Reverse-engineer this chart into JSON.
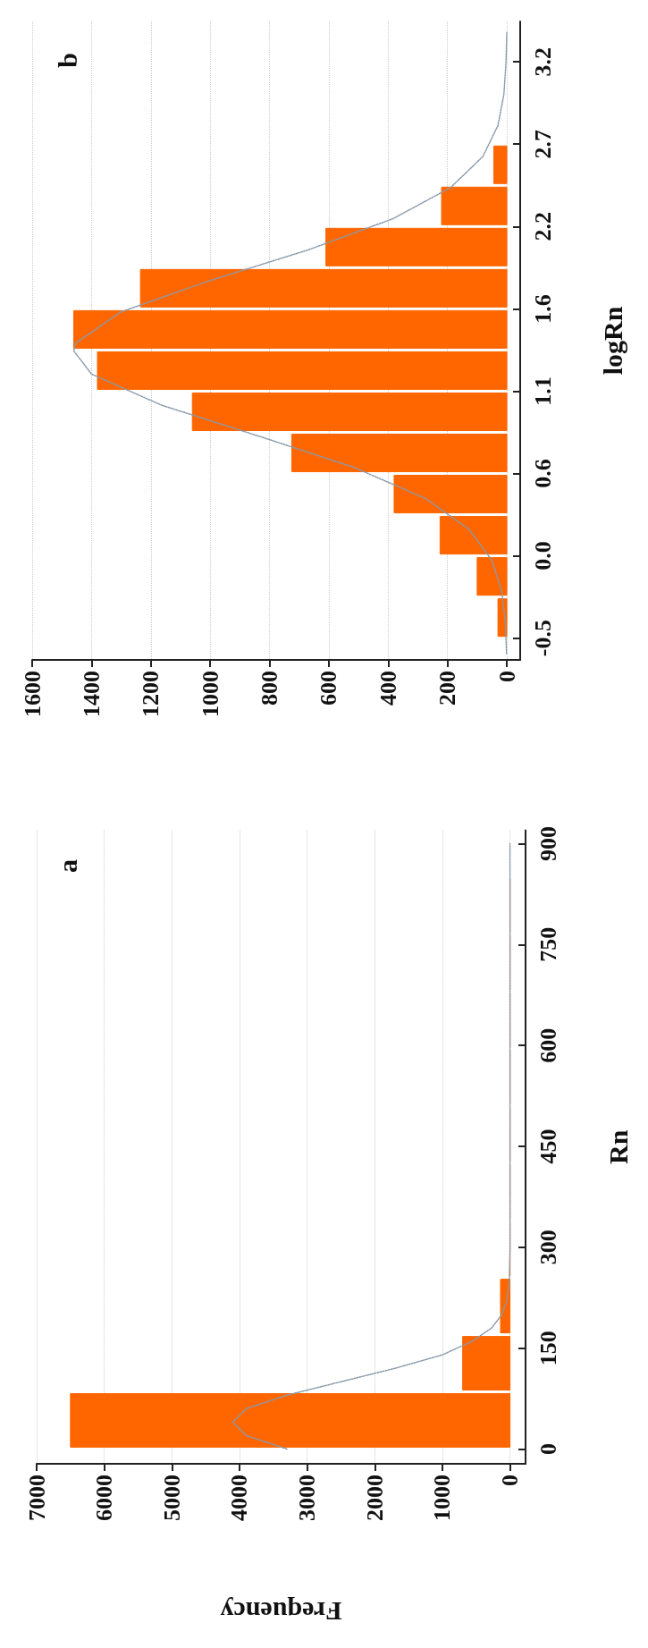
{
  "chart_data": [
    {
      "type": "histogram",
      "orientation": "horizontal",
      "ylabel": "logRn",
      "annotations": [
        "b"
      ],
      "series": [
        {
          "color": "#ff6600",
          "bins": [
            -0.5,
            -0.235,
            0.03,
            0.295,
            0.56,
            0.825,
            1.09,
            1.355,
            1.62,
            1.885,
            2.15,
            2.415,
            2.68
          ],
          "values": [
            30,
            100,
            225,
            380,
            725,
            1060,
            1380,
            1460,
            1235,
            610,
            220,
            44
          ]
        },
        {
          "type": "line",
          "color": "#8899aa",
          "line_style": "dotted",
          "x": [
            -0.6,
            -0.4,
            -0.2,
            0.0,
            0.2,
            0.4,
            0.6,
            0.8,
            1.0,
            1.2,
            1.35,
            1.4,
            1.6,
            1.8,
            2.0,
            2.2,
            2.4,
            2.6,
            2.8,
            3.0,
            3.2,
            3.4
          ],
          "values": [
            1,
            5,
            17,
            50,
            127,
            275,
            516,
            835,
            1164,
            1400,
            1460,
            1453,
            1301,
            1004,
            669,
            384,
            190,
            81,
            30,
            10,
            3,
            0
          ]
        }
      ],
      "ylim": [
        -0.64,
        3.47
      ],
      "yticks": [
        {
          "value": -0.5,
          "label": "-0.5"
        },
        {
          "value": 0.03,
          "label": "0.0"
        },
        {
          "value": 0.56,
          "label": "0.6"
        },
        {
          "value": 1.09,
          "label": "1.1"
        },
        {
          "value": 1.62,
          "label": "1.6"
        },
        {
          "value": 2.15,
          "label": "2.2"
        },
        {
          "value": 2.68,
          "label": "2.7"
        },
        {
          "value": 3.21,
          "label": "3.2"
        }
      ],
      "xlim": [
        1600,
        -45
      ],
      "xticks": [
        0,
        200,
        400,
        600,
        800,
        1000,
        1200,
        1400,
        1600
      ],
      "grid": "x"
    },
    {
      "type": "histogram",
      "orientation": "horizontal",
      "ylabel": "Rn",
      "xlabel": "Frequency",
      "annotations": [
        "a"
      ],
      "series": [
        {
          "color": "#ff6600",
          "bins": [
            0,
            85,
            170,
            255,
            340,
            425,
            510,
            595,
            680,
            765,
            850
          ],
          "values": [
            6500,
            700,
            140,
            0,
            0,
            0,
            0,
            0,
            0,
            0
          ]
        },
        {
          "type": "line",
          "color": "#8899aa",
          "line_style": "dotted",
          "x": [
            0,
            20,
            40,
            60,
            80,
            100,
            120,
            140,
            160,
            180,
            200,
            220,
            250,
            300,
            400,
            500,
            600,
            700,
            800,
            900
          ],
          "values": [
            3300,
            3900,
            4100,
            3900,
            3300,
            2500,
            1700,
            1000,
            560,
            270,
            120,
            50,
            10,
            0,
            0,
            0,
            0,
            0,
            0,
            0
          ]
        }
      ],
      "ylim": [
        -22,
        920
      ],
      "yticks": [
        0,
        150,
        300,
        450,
        600,
        750,
        900
      ],
      "xlim": [
        7000,
        -230
      ],
      "xticks": [
        0,
        1000,
        2000,
        3000,
        4000,
        5000,
        6000,
        7000
      ],
      "grid": "x"
    }
  ]
}
